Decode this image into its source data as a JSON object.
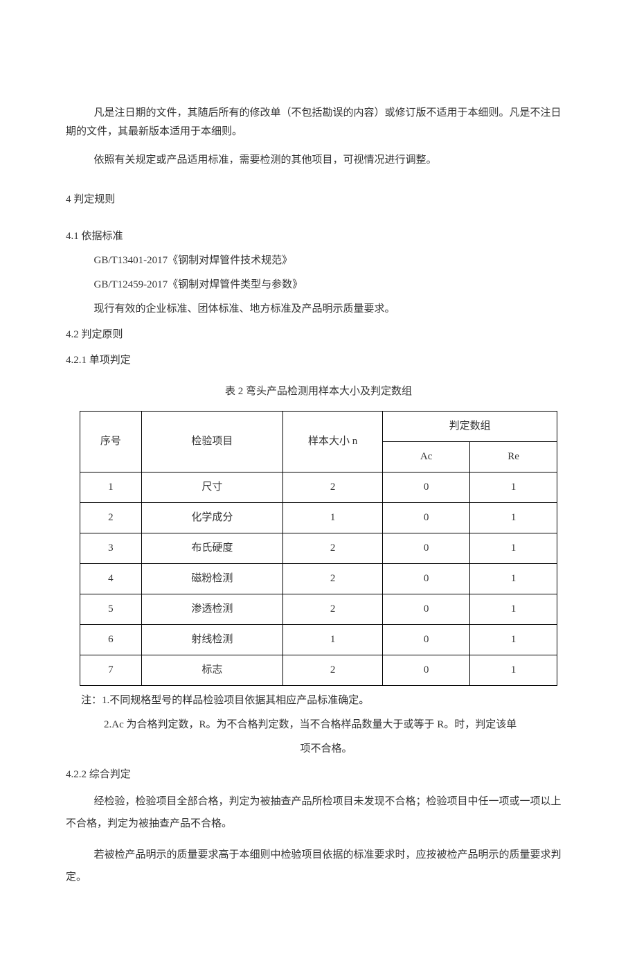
{
  "paragraphs": {
    "intro1": "凡是注日期的文件，其随后所有的修改单（不包括勘误的内容）或修订版不适用于本细则。凡是不注日期的文件，其最新版本适用于本细则。",
    "intro2": "依照有关规定或产品适用标准，需要检测的其他项目，可视情况进行调整。"
  },
  "section4": {
    "title": "4 判定规则",
    "sub1": {
      "title": "4.1 依据标准",
      "lines": {
        "l1": "GB/T13401-2017《钢制对焊管件技术规范》",
        "l2": "GB/T12459-2017《钢制对焊管件类型与参数》",
        "l3": "现行有效的企业标准、团体标准、地方标准及产品明示质量要求。"
      }
    },
    "sub2": {
      "title": "4.2 判定原则",
      "sub2_1": {
        "title": "4.2.1 单项判定",
        "table_title": "表 2 弯头产品检测用样本大小及判定数组",
        "headers": {
          "col1": "序号",
          "col2": "检验项目",
          "col3": "样本大小 n",
          "col4": "判定数组",
          "col4a": "Ac",
          "col4b": "Re"
        },
        "rows": [
          {
            "idx": "1",
            "item": "尺寸",
            "n": "2",
            "ac": "0",
            "re": "1"
          },
          {
            "idx": "2",
            "item": "化学成分",
            "n": "1",
            "ac": "0",
            "re": "1"
          },
          {
            "idx": "3",
            "item": "布氏硬度",
            "n": "2",
            "ac": "0",
            "re": "1"
          },
          {
            "idx": "4",
            "item": "磁粉检测",
            "n": "2",
            "ac": "0",
            "re": "1"
          },
          {
            "idx": "5",
            "item": "渗透检测",
            "n": "2",
            "ac": "0",
            "re": "1"
          },
          {
            "idx": "6",
            "item": "射线检测",
            "n": "1",
            "ac": "0",
            "re": "1"
          },
          {
            "idx": "7",
            "item": "标志",
            "n": "2",
            "ac": "0",
            "re": "1"
          }
        ],
        "note1": "注：1.不同规格型号的样品检验项目依据其相应产品标准确定。",
        "note2": "2.Ac 为合格判定数，R。为不合格判定数，当不合格样品数量大于或等于 R。时，判定该单",
        "note2b": "项不合格。"
      },
      "sub2_2": {
        "title": "4.2.2 综合判定",
        "p1": "经检验，检验项目全部合格，判定为被抽查产品所检项目未发现不合格；检验项目中任一项或一项以上不合格，判定为被抽查产品不合格。",
        "p2": "若被检产品明示的质量要求高于本细则中检验项目依据的标准要求时，应按被检产品明示的质量要求判定。"
      }
    }
  },
  "layout": {
    "col_widths": {
      "c1": "85px",
      "c2": "210px",
      "c3": "145px",
      "c4": "125px",
      "c5": "125px"
    }
  }
}
